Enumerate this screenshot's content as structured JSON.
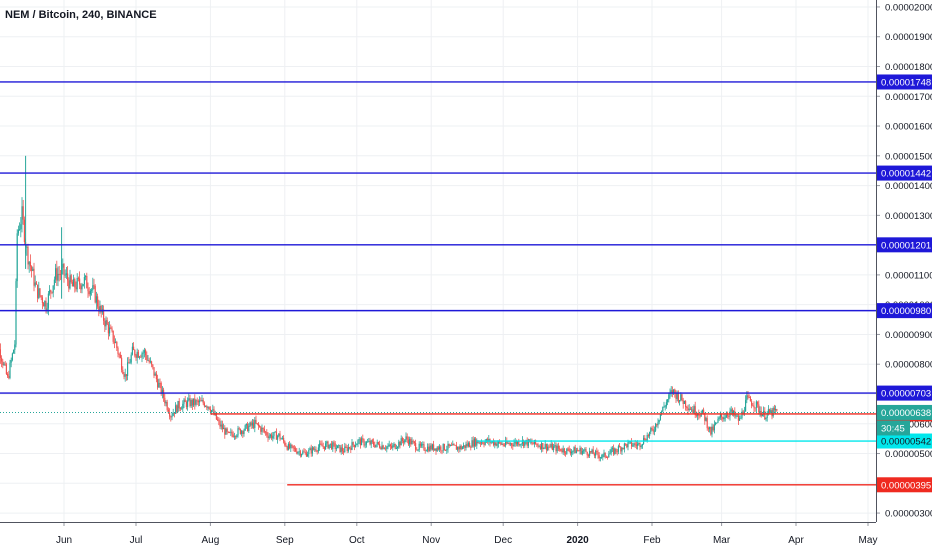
{
  "chart_data": {
    "type": "candlestick",
    "title": "NEM / Bitcoin, 240, BINANCE",
    "y_axis": {
      "ticks": [
        "0.00002000",
        "0.00001900",
        "0.00001800",
        "0.00001700",
        "0.00001600",
        "0.00001500",
        "0.00001400",
        "0.00001300",
        "0.00001200",
        "0.00001100",
        "0.00001000",
        "0.00000900",
        "0.00000800",
        "0.00000700",
        "0.00000600",
        "0.00000500",
        "0.00000400",
        "0.00000300"
      ],
      "range": [
        2.7e-06,
        2.02e-05
      ]
    },
    "x_axis": {
      "ticks": [
        {
          "label": "Jun",
          "date": "2019-06-01"
        },
        {
          "label": "Jul",
          "date": "2019-07-01"
        },
        {
          "label": "Aug",
          "date": "2019-08-01"
        },
        {
          "label": "Sep",
          "date": "2019-09-01"
        },
        {
          "label": "Oct",
          "date": "2019-10-01"
        },
        {
          "label": "Nov",
          "date": "2019-11-01"
        },
        {
          "label": "Dec",
          "date": "2019-12-01"
        },
        {
          "label": "2020",
          "date": "2020-01-01"
        },
        {
          "label": "Feb",
          "date": "2020-02-01"
        },
        {
          "label": "Mar",
          "date": "2020-03-01"
        },
        {
          "label": "Apr",
          "date": "2020-04-01"
        },
        {
          "label": "May",
          "date": "2020-05-01"
        }
      ]
    },
    "price_path": [
      [
        "2019-05-02",
        9e-06
      ],
      [
        "2019-05-06",
        8.4e-06
      ],
      [
        "2019-05-09",
        7.5e-06
      ],
      [
        "2019-05-12",
        8.7e-06
      ],
      [
        "2019-05-13",
        1.24e-05
      ],
      [
        "2019-05-15",
        1.3e-05
      ],
      [
        "2019-05-17",
        1.18e-05
      ],
      [
        "2019-05-21",
        1.05e-05
      ],
      [
        "2019-05-25",
        1e-05
      ],
      [
        "2019-05-29",
        1.1e-05
      ],
      [
        "2019-06-01",
        1.11e-05
      ],
      [
        "2019-06-05",
        1.06e-05
      ],
      [
        "2019-06-10",
        1.08e-05
      ],
      [
        "2019-06-14",
        1.04e-05
      ],
      [
        "2019-06-17",
        9.7e-06
      ],
      [
        "2019-06-23",
        8.7e-06
      ],
      [
        "2019-06-27",
        7.6e-06
      ],
      [
        "2019-06-30",
        8.4e-06
      ],
      [
        "2019-07-05",
        8.4e-06
      ],
      [
        "2019-07-08",
        7.9e-06
      ],
      [
        "2019-07-12",
        7.1e-06
      ],
      [
        "2019-07-16",
        6.3e-06
      ],
      [
        "2019-07-19",
        6.6e-06
      ],
      [
        "2019-07-23",
        6.7e-06
      ],
      [
        "2019-07-30",
        6.7e-06
      ],
      [
        "2019-08-01",
        6.6e-06
      ],
      [
        "2019-08-05",
        6e-06
      ],
      [
        "2019-08-09",
        5.6e-06
      ],
      [
        "2019-08-15",
        5.8e-06
      ],
      [
        "2019-08-20",
        6e-06
      ],
      [
        "2019-08-26",
        5.6e-06
      ],
      [
        "2019-08-30",
        5.6e-06
      ],
      [
        "2019-09-03",
        5.2e-06
      ],
      [
        "2019-09-10",
        5e-06
      ],
      [
        "2019-09-15",
        5.2e-06
      ],
      [
        "2019-09-20",
        5.3e-06
      ],
      [
        "2019-09-26",
        5.1e-06
      ],
      [
        "2019-10-02",
        5.4e-06
      ],
      [
        "2019-10-10",
        5.3e-06
      ],
      [
        "2019-10-16",
        5.2e-06
      ],
      [
        "2019-10-22",
        5.5e-06
      ],
      [
        "2019-10-27",
        5.2e-06
      ],
      [
        "2019-11-01",
        5.2e-06
      ],
      [
        "2019-11-08",
        5.2e-06
      ],
      [
        "2019-11-14",
        5.2e-06
      ],
      [
        "2019-11-20",
        5.4e-06
      ],
      [
        "2019-11-26",
        5.4e-06
      ],
      [
        "2019-12-02",
        5.3e-06
      ],
      [
        "2019-12-09",
        5.4e-06
      ],
      [
        "2019-12-16",
        5.3e-06
      ],
      [
        "2019-12-22",
        5.2e-06
      ],
      [
        "2019-12-28",
        5.1e-06
      ],
      [
        "2020-01-03",
        5.1e-06
      ],
      [
        "2020-01-08",
        5e-06
      ],
      [
        "2020-01-12",
        4.9e-06
      ],
      [
        "2020-01-17",
        5.1e-06
      ],
      [
        "2020-01-22",
        5.3e-06
      ],
      [
        "2020-01-27",
        5.3e-06
      ],
      [
        "2020-02-02",
        5.8e-06
      ],
      [
        "2020-02-06",
        6.5e-06
      ],
      [
        "2020-02-10",
        7.1e-06
      ],
      [
        "2020-02-14",
        6.8e-06
      ],
      [
        "2020-02-18",
        6.5e-06
      ],
      [
        "2020-02-23",
        6.3e-06
      ],
      [
        "2020-02-26",
        5.7e-06
      ],
      [
        "2020-03-01",
        6.2e-06
      ],
      [
        "2020-03-05",
        6.4e-06
      ],
      [
        "2020-03-09",
        6.1e-06
      ],
      [
        "2020-03-12",
        6.8e-06
      ],
      [
        "2020-03-15",
        6.7e-06
      ],
      [
        "2020-03-19",
        6.3e-06
      ],
      [
        "2020-03-24",
        6.4e-06
      ]
    ],
    "horizontal_lines": [
      {
        "value": 1.748e-05,
        "label": "0.00001748",
        "color": "#1e18d8"
      },
      {
        "value": 1.442e-05,
        "label": "0.00001442",
        "color": "#1e18d8"
      },
      {
        "value": 1.201e-05,
        "label": "0.00001201",
        "color": "#1e18d8"
      },
      {
        "value": 9.8e-06,
        "label": "0.00000980",
        "color": "#1e18d8"
      },
      {
        "value": 7.03e-06,
        "label": "0.00000703",
        "color": "#1e18d8"
      },
      {
        "value": 6.33e-06,
        "label": "0.00000633",
        "color": "#ef2a20",
        "start": "2019-08-01"
      },
      {
        "value": 5.42e-06,
        "label": "0.00000542",
        "color": "#00e7ec",
        "start": "2019-11-20"
      },
      {
        "value": 3.95e-06,
        "label": "0.00000395",
        "color": "#ef2a20",
        "start": "2019-09-02"
      }
    ],
    "last_price": {
      "value": 6.38e-06,
      "label": "0.00000638",
      "countdown": "30:45",
      "color": "#26a69a"
    },
    "colors": {
      "up": "#26a69a",
      "down": "#ef5350"
    }
  }
}
